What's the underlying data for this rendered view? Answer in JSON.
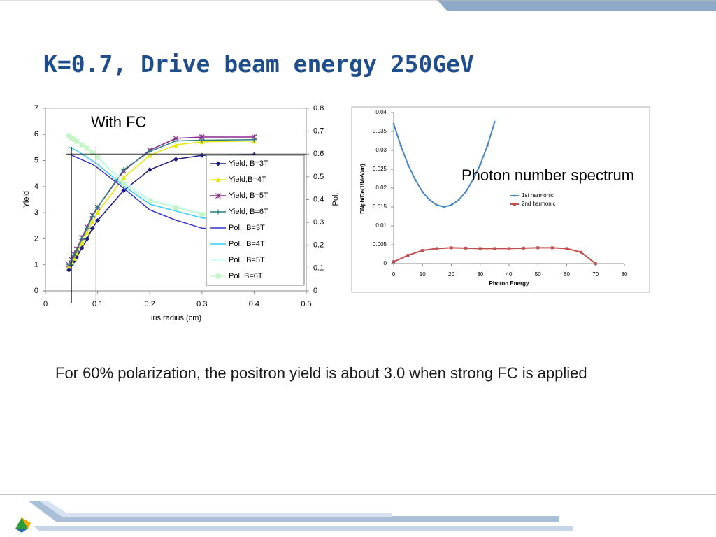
{
  "title": "K=0.7, Drive beam energy 250GeV",
  "text": "For 60% polarization, the positron yield is about 3.0 when strong FC is applied",
  "chart_data": [
    {
      "type": "line",
      "annotation": "With FC",
      "xlabel": "iris radius (cm)",
      "ylabel": "Yield",
      "y2label": "Pol.",
      "x": [
        0.045,
        0.05,
        0.055,
        0.06,
        0.07,
        0.08,
        0.09,
        0.1,
        0.15,
        0.2,
        0.25,
        0.3,
        0.4
      ],
      "xlim": [
        0,
        0.5
      ],
      "xticks": [
        0,
        0.1,
        0.2,
        0.3,
        0.4,
        0.5
      ],
      "ylim": [
        0,
        7
      ],
      "yticks": [
        0,
        1,
        2,
        3,
        4,
        5,
        6,
        7
      ],
      "y2lim": [
        0,
        0.8
      ],
      "y2ticks": [
        0,
        0.1,
        0.2,
        0.3,
        0.4,
        0.5,
        0.6,
        0.7,
        0.8
      ],
      "ref_y2": 0.6,
      "ref_x": [
        0.05,
        0.097
      ],
      "series": [
        {
          "name": "Yield, B=3T",
          "color": "#1a1a80",
          "marker": "diamond",
          "values": [
            0.8,
            1.0,
            1.15,
            1.3,
            1.65,
            2.0,
            2.4,
            2.7,
            3.85,
            4.65,
            5.05,
            5.2,
            5.22
          ]
        },
        {
          "name": "Yield,B=4T",
          "color": "#e8e800",
          "marker": "triangle",
          "values": [
            0.95,
            1.1,
            1.25,
            1.45,
            1.85,
            2.25,
            2.65,
            3.0,
            4.35,
            5.2,
            5.6,
            5.72,
            5.75
          ]
        },
        {
          "name": "Yield, B=5T",
          "color": "#8b2a8b",
          "marker": "star",
          "values": [
            1.0,
            1.2,
            1.4,
            1.6,
            2.05,
            2.45,
            2.9,
            3.2,
            4.6,
            5.4,
            5.85,
            5.9,
            5.9
          ]
        },
        {
          "name": "Yield, B=6T",
          "color": "#2e8080",
          "marker": "plus",
          "values": [
            1.0,
            1.15,
            1.35,
            1.55,
            2.0,
            2.4,
            2.85,
            3.2,
            4.65,
            5.35,
            5.75,
            5.78,
            5.8
          ]
        },
        {
          "name": "Pol., B=3T",
          "color": "#3333cc",
          "marker": "none",
          "axis": "y2",
          "values": [
            0.6,
            0.595,
            0.59,
            0.585,
            0.575,
            0.565,
            0.555,
            0.54,
            0.45,
            0.355,
            0.31,
            0.275,
            0.255
          ]
        },
        {
          "name": "Pol., B=4T",
          "color": "#33ccff",
          "marker": "none",
          "axis": "y2",
          "values": [
            0.63,
            0.625,
            0.62,
            0.615,
            0.6,
            0.585,
            0.57,
            0.555,
            0.46,
            0.38,
            0.35,
            0.32,
            0.3
          ]
        },
        {
          "name": "Pol., B=5T",
          "color": "#ccffff",
          "marker": "none",
          "axis": "y2",
          "values": [
            0.68,
            0.675,
            0.67,
            0.66,
            0.645,
            0.63,
            0.61,
            0.59,
            0.48,
            0.4,
            0.37,
            0.34,
            0.32
          ]
        },
        {
          "name": "Pol, B=6T",
          "color": "#c8f5c8",
          "marker": "square",
          "axis": "y2",
          "values": [
            0.68,
            0.67,
            0.665,
            0.655,
            0.64,
            0.625,
            0.605,
            0.585,
            0.47,
            0.395,
            0.365,
            0.335,
            0.32
          ]
        }
      ]
    },
    {
      "type": "line",
      "annotation": "Photon number spectrum",
      "xlabel": "Photon Energy",
      "ylabel": "DNph/De(1/MeV/m)",
      "xlim": [
        0,
        80
      ],
      "xticks": [
        0,
        10,
        20,
        30,
        40,
        50,
        60,
        70,
        80
      ],
      "ylim": [
        0,
        0.04
      ],
      "yticks": [
        0,
        0.005,
        0.01,
        0.015,
        0.02,
        0.025,
        0.03,
        0.035,
        0.04
      ],
      "series": [
        {
          "name": "1st harmonic",
          "color": "#4a86c0",
          "marker": "diamond",
          "x": [
            0,
            2.5,
            5,
            7.5,
            10,
            12.5,
            15,
            17.5,
            20,
            22.5,
            25,
            27.5,
            30,
            32.5,
            35
          ],
          "values": [
            0.037,
            0.0312,
            0.0262,
            0.0222,
            0.019,
            0.0168,
            0.0155,
            0.015,
            0.0155,
            0.0168,
            0.019,
            0.0222,
            0.0262,
            0.0312,
            0.0375
          ]
        },
        {
          "name": "2nd harmonic",
          "color": "#c0504d",
          "marker": "square",
          "x": [
            0,
            5,
            10,
            15,
            20,
            25,
            30,
            35,
            40,
            45,
            50,
            55,
            60,
            65,
            70
          ],
          "values": [
            0.0005,
            0.0022,
            0.0035,
            0.004,
            0.0042,
            0.0041,
            0.004,
            0.004,
            0.004,
            0.0041,
            0.0042,
            0.0042,
            0.004,
            0.003,
            0
          ]
        }
      ]
    }
  ]
}
